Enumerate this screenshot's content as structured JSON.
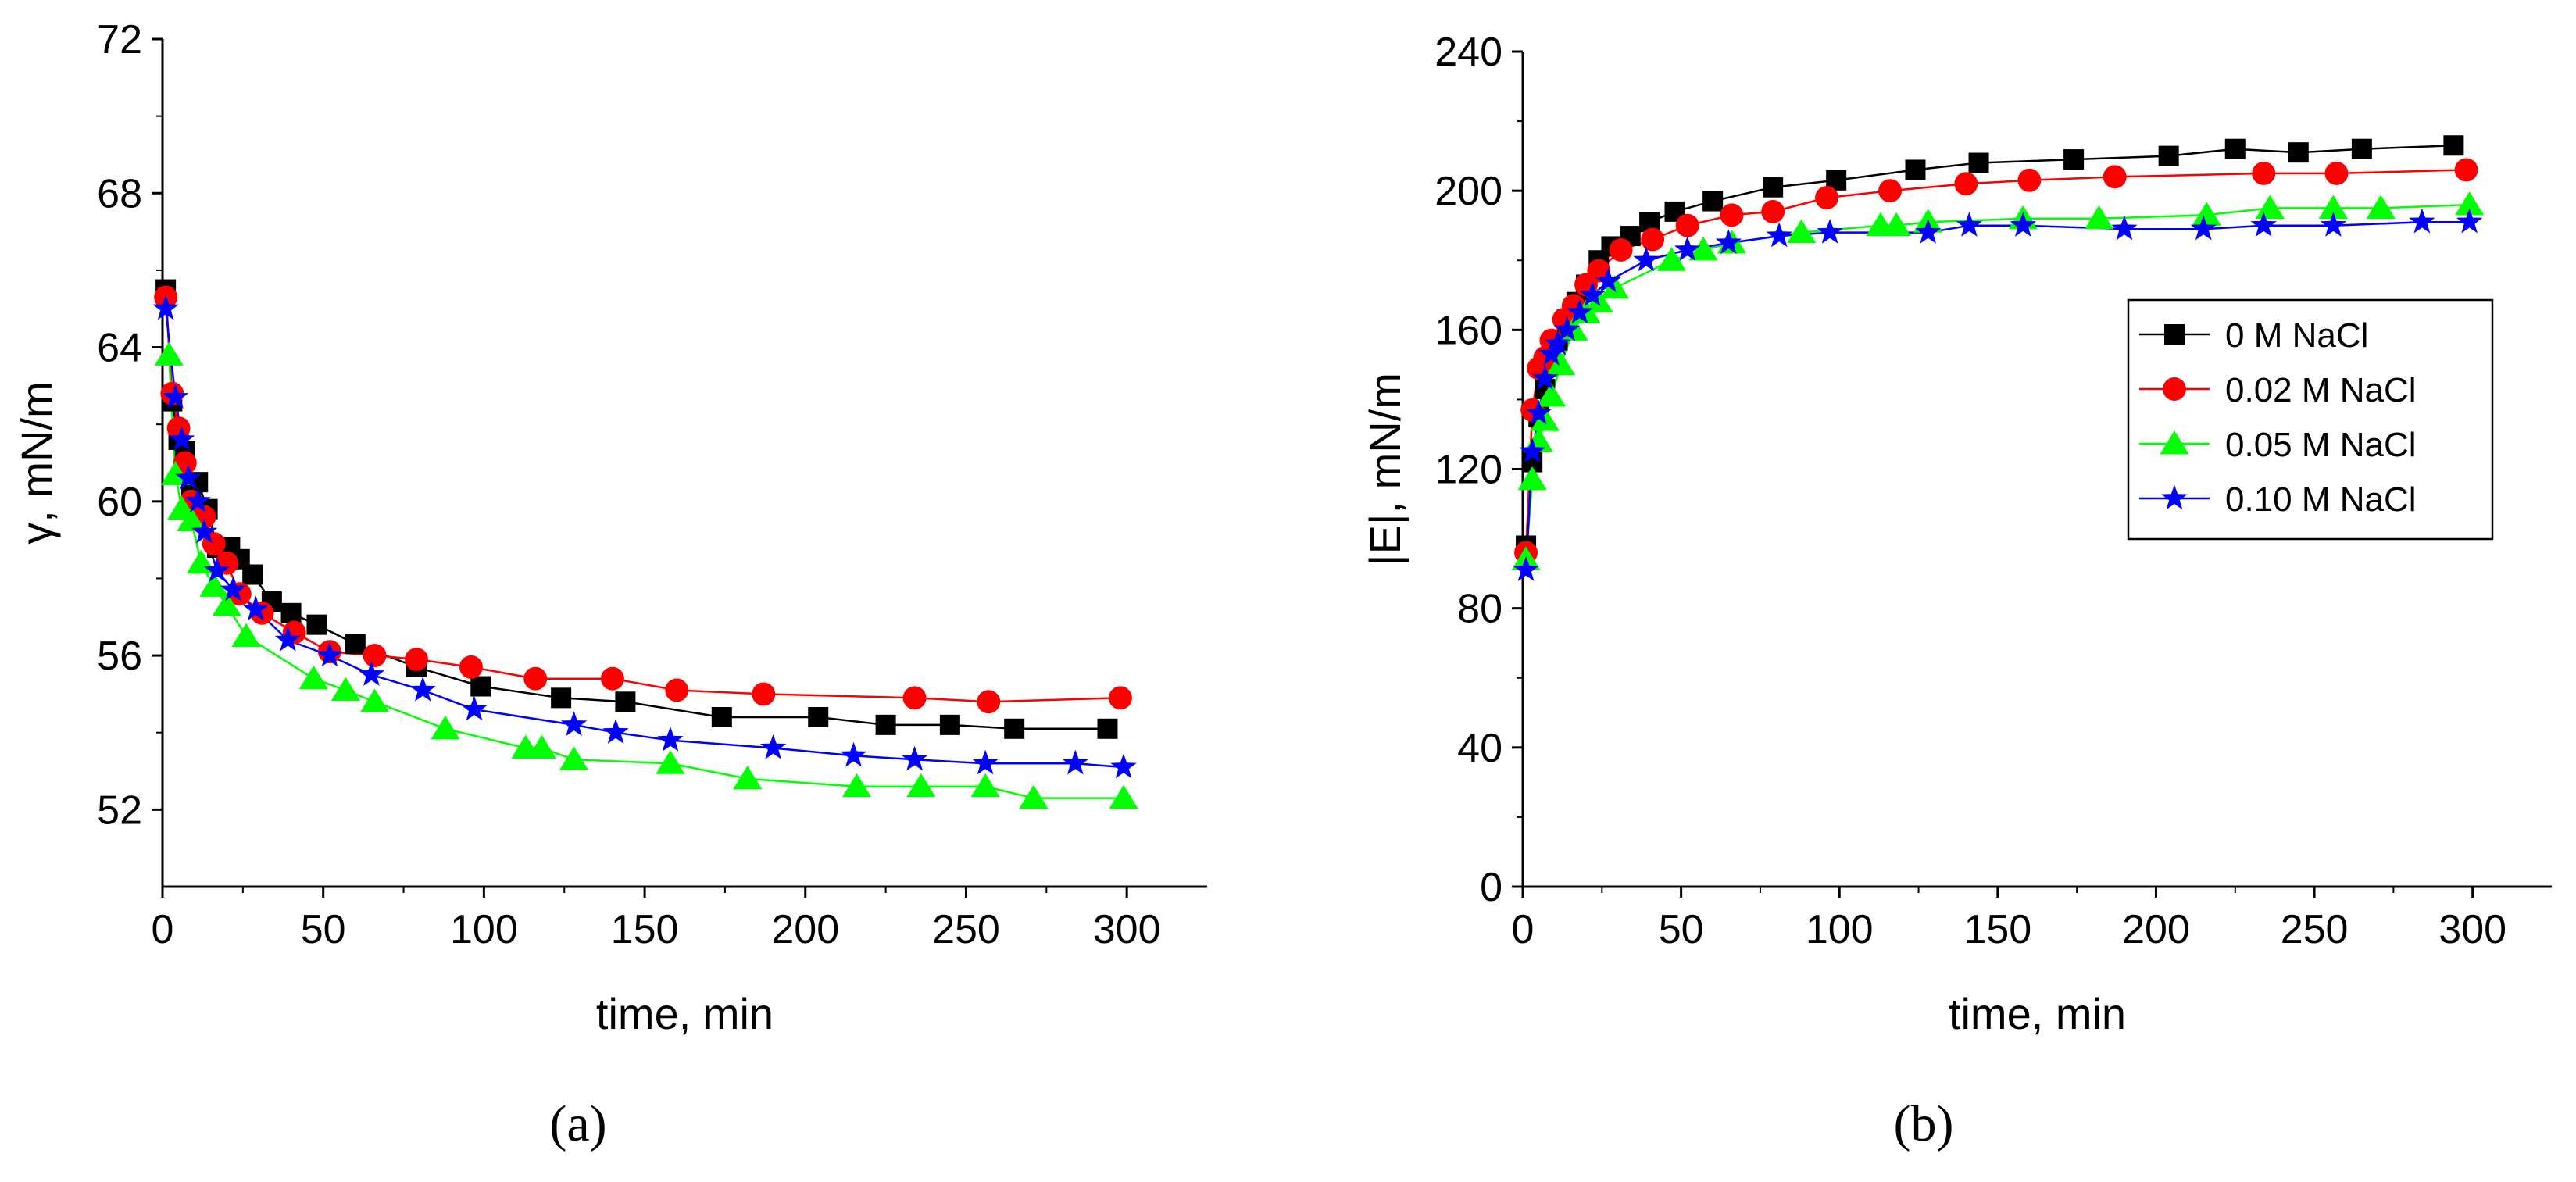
{
  "chart_data": [
    {
      "type": "line",
      "panel_label": "(a)",
      "xlabel": "time, min",
      "ylabel": "γ, mN/m",
      "xlim": [
        0,
        325
      ],
      "ylim": [
        50,
        72
      ],
      "xticks": [
        0,
        50,
        100,
        150,
        200,
        250,
        300
      ],
      "yticks": [
        52,
        56,
        60,
        64,
        68,
        72
      ],
      "series": [
        {
          "name": "0 M NaCl",
          "color": "#000000",
          "marker": "square",
          "x": [
            1,
            3,
            5,
            7,
            9,
            11,
            14,
            17,
            21,
            24,
            28,
            34,
            40,
            48,
            60,
            79,
            99,
            124,
            144,
            174,
            204,
            225,
            245,
            265,
            294
          ],
          "y": [
            65.5,
            62.6,
            61.6,
            61.3,
            60.3,
            60.5,
            59.8,
            58.8,
            58.8,
            58.5,
            58.1,
            57.4,
            57.1,
            56.8,
            56.3,
            55.7,
            55.2,
            54.9,
            54.8,
            54.4,
            54.4,
            54.2,
            54.2,
            54.1,
            54.1
          ]
        },
        {
          "name": "0.02 M NaCl",
          "color": "#ff0000",
          "marker": "circle",
          "x": [
            1,
            3,
            5,
            7,
            9,
            13,
            16,
            20,
            24,
            31,
            41,
            52,
            66,
            79,
            96,
            116,
            140,
            160,
            187,
            234,
            257,
            298
          ],
          "y": [
            65.3,
            62.8,
            61.9,
            61.0,
            60.0,
            59.6,
            58.9,
            58.4,
            57.6,
            57.1,
            56.6,
            56.1,
            56.0,
            55.9,
            55.7,
            55.4,
            55.4,
            55.1,
            55.0,
            54.9,
            54.8,
            54.9
          ]
        },
        {
          "name": "0.05 M NaCl",
          "color": "#00ff00",
          "marker": "triangle",
          "x": [
            2,
            4,
            6,
            9,
            12,
            16,
            20,
            26,
            47,
            57,
            66,
            88,
            113,
            118,
            128,
            158,
            182,
            216,
            236,
            256,
            271,
            299
          ],
          "y": [
            63.8,
            60.7,
            59.8,
            59.5,
            58.4,
            57.8,
            57.3,
            56.5,
            55.4,
            55.1,
            54.8,
            54.1,
            53.6,
            53.6,
            53.3,
            53.2,
            52.8,
            52.6,
            52.6,
            52.6,
            52.3,
            52.3
          ]
        },
        {
          "name": "0.10 M NaCl",
          "color": "#0000ff",
          "marker": "star",
          "x": [
            1,
            4,
            6,
            8,
            11,
            13,
            17,
            22,
            29,
            39,
            52,
            65,
            81,
            97,
            128,
            141,
            158,
            190,
            215,
            234,
            256,
            284,
            299
          ],
          "y": [
            65.0,
            62.7,
            61.6,
            60.6,
            60.0,
            59.2,
            58.2,
            57.7,
            57.2,
            56.4,
            56.0,
            55.5,
            55.1,
            54.6,
            54.2,
            54.0,
            53.8,
            53.6,
            53.4,
            53.3,
            53.2,
            53.2,
            53.1
          ]
        }
      ]
    },
    {
      "type": "line",
      "panel_label": "(b)",
      "xlabel": "time, min",
      "ylabel": "|E|, mN/m",
      "xlim": [
        0,
        325
      ],
      "ylim": [
        0,
        240
      ],
      "xticks": [
        0,
        50,
        100,
        150,
        200,
        250,
        300
      ],
      "yticks": [
        0,
        40,
        80,
        120,
        160,
        200,
        240
      ],
      "legend_position": "center-right",
      "series": [
        {
          "name": "0 M NaCl",
          "color": "#000000",
          "marker": "square",
          "x": [
            1,
            3,
            5,
            7,
            9,
            11,
            14,
            17,
            20,
            24,
            28,
            34,
            40,
            48,
            60,
            79,
            99,
            124,
            144,
            174,
            204,
            225,
            245,
            265,
            294
          ],
          "y": [
            98,
            122,
            135,
            143,
            150,
            157,
            163,
            168,
            173,
            180,
            184,
            187,
            191,
            194,
            197,
            201,
            203,
            206,
            208,
            209,
            210,
            212,
            211,
            212,
            213
          ]
        },
        {
          "name": "0.02 M NaCl",
          "color": "#ff0000",
          "marker": "circle",
          "x": [
            1,
            3,
            5,
            7,
            9,
            13,
            16,
            20,
            24,
            31,
            41,
            52,
            66,
            79,
            96,
            116,
            140,
            160,
            187,
            234,
            257,
            298
          ],
          "y": [
            96,
            137,
            149,
            152,
            157,
            163,
            167,
            173,
            177,
            183,
            186,
            190,
            193,
            194,
            198,
            200,
            202,
            203,
            204,
            205,
            205,
            206
          ]
        },
        {
          "name": "0.05 M NaCl",
          "color": "#00ff00",
          "marker": "triangle",
          "x": [
            1,
            3,
            5,
            7,
            9,
            12,
            16,
            20,
            24,
            29,
            47,
            57,
            66,
            88,
            113,
            118,
            128,
            158,
            182,
            216,
            236,
            256,
            271,
            299
          ],
          "y": [
            94,
            117,
            128,
            134,
            141,
            150,
            160,
            165,
            168,
            172,
            180,
            183,
            185,
            188,
            190,
            190,
            191,
            192,
            192,
            193,
            195,
            195,
            195,
            196
          ]
        },
        {
          "name": "0.10 M NaCl",
          "color": "#0000ff",
          "marker": "star",
          "x": [
            1,
            3,
            5,
            7,
            9,
            11,
            14,
            18,
            22,
            27,
            39,
            52,
            65,
            81,
            97,
            128,
            141,
            158,
            190,
            215,
            234,
            256,
            284,
            299
          ],
          "y": [
            91,
            125,
            136,
            146,
            153,
            156,
            160,
            165,
            170,
            174,
            180,
            183,
            185,
            187,
            188,
            188,
            190,
            190,
            189,
            189,
            190,
            190,
            191,
            191
          ]
        }
      ]
    }
  ]
}
